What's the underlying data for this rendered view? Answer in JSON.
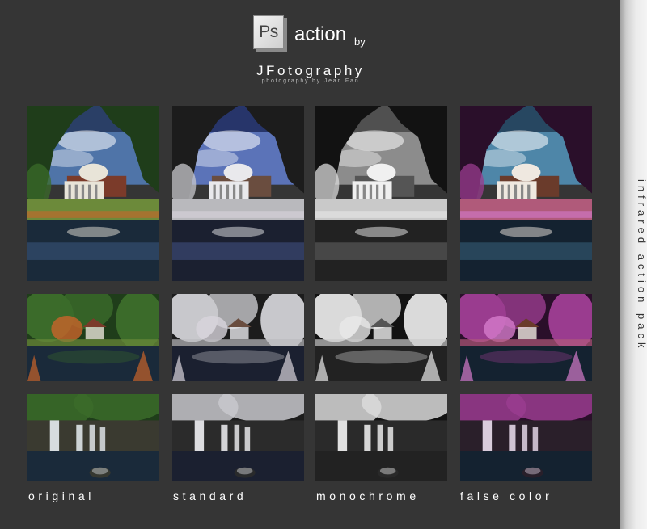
{
  "header": {
    "logo_text": "Ps",
    "action_label": "action",
    "by_label": "by",
    "brand_name": "JFotography",
    "tagline": "photography by Jean Fan"
  },
  "columns": [
    {
      "label": "original",
      "style": "original"
    },
    {
      "label": "standard",
      "style": "standard"
    },
    {
      "label": "monochrome",
      "style": "monochrome"
    },
    {
      "label": "false color",
      "style": "falsecolor"
    }
  ],
  "rows": [
    {
      "subject": "mansion"
    },
    {
      "subject": "gazebo"
    },
    {
      "subject": "waterfall"
    }
  ],
  "side_caption": "infrared action pack",
  "colors": {
    "panel_bg": "#353535",
    "text": "#ffffff"
  }
}
